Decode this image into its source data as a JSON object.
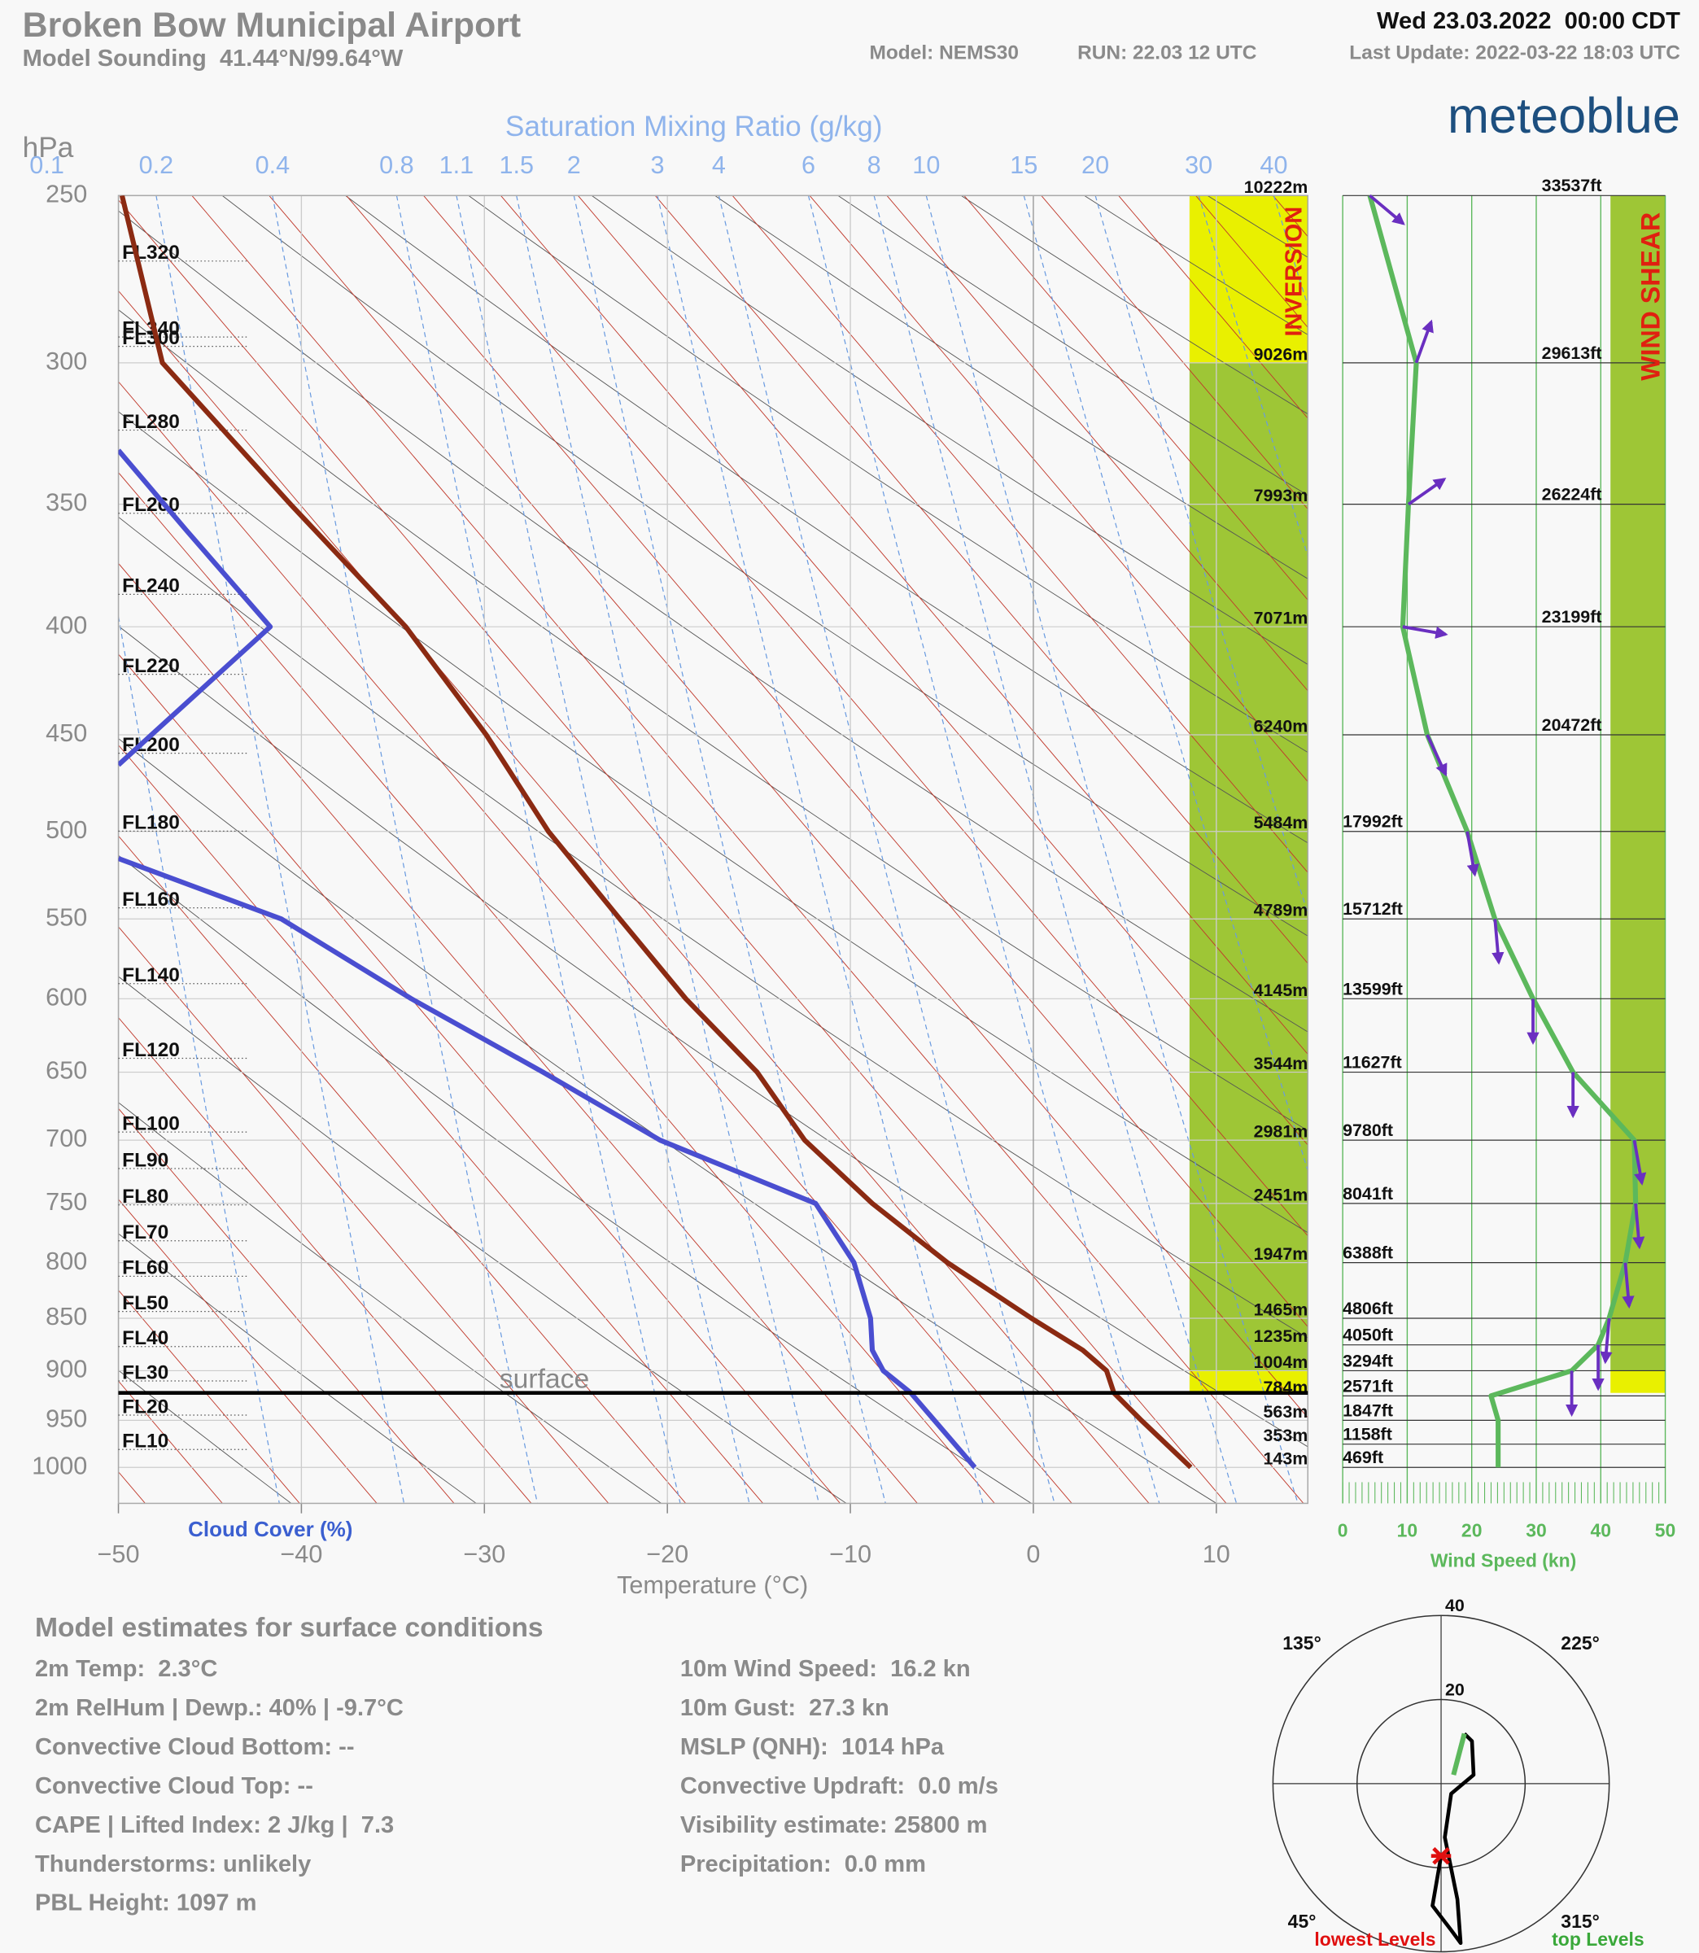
{
  "header": {
    "title": "Broken Bow Municipal Airport",
    "subtitle": "Model Sounding  41.44°N/99.64°W",
    "valid_time": "Wed 23.03.2022  00:00 CDT",
    "model": "Model: NEMS30",
    "run": "RUN: 22.03 12 UTC",
    "last_update": "Last Update: 2022-03-22 18:03 UTC",
    "brand": "meteoblue"
  },
  "chart_data": [
    {
      "type": "sounding",
      "y_label": "hPa",
      "x_label": "Temperature (°C)",
      "mixing_ratio_label": "Saturation Mixing Ratio (g/kg)",
      "cloud_cover_label": "Cloud Cover (%)",
      "log_y": true,
      "xlim": [
        -50,
        15
      ],
      "ylim": [
        250,
        1040
      ],
      "xticks": [
        {
          "value": -50,
          "label": "−50"
        },
        {
          "value": -40,
          "label": "−40"
        },
        {
          "value": -30,
          "label": "−30"
        },
        {
          "value": -20,
          "label": "−20"
        },
        {
          "value": -10,
          "label": "−10"
        },
        0,
        10
      ],
      "yticks": [
        250,
        300,
        350,
        400,
        450,
        500,
        550,
        600,
        650,
        700,
        750,
        800,
        850,
        900,
        950,
        1000
      ],
      "mixing_ratio_ticks": [
        0.1,
        0.2,
        0.4,
        0.8,
        1.1,
        1.5,
        2,
        3,
        4,
        6,
        8,
        10,
        15,
        20,
        30,
        40
      ],
      "series": [
        {
          "color": "#8b2a12",
          "pressure": [
            250,
            300,
            350,
            400,
            450,
            500,
            550,
            600,
            650,
            700,
            750,
            800,
            850,
            880,
            900,
            922,
            950,
            1000
          ],
          "values": [
            -49.8,
            -47.6,
            -40.6,
            -34.3,
            -29.9,
            -26.5,
            -22.6,
            -19.0,
            -15.1,
            -12.5,
            -8.8,
            -4.7,
            -0.1,
            2.7,
            4.0,
            4.4,
            5.9,
            8.6
          ]
        },
        {
          "color": "#4a4ed0",
          "pressure": [
            330,
            360,
            400,
            465,
            490,
            515,
            550,
            600,
            650,
            700,
            750,
            800,
            850,
            880,
            900,
            922,
            1000
          ],
          "values": [
            -50,
            -46.3,
            -41.7,
            -50,
            null,
            -50,
            -41.1,
            -34.0,
            -26.8,
            -20.4,
            -11.9,
            -9.8,
            -8.9,
            -8.8,
            -8.2,
            -6.7,
            -3.2
          ]
        }
      ],
      "surface": {
        "label": "surface",
        "pressure": 922
      },
      "flight_levels": [
        "FL340",
        "FL320",
        "FL300",
        "FL280",
        "FL260",
        "FL240",
        "FL220",
        "FL200",
        "FL180",
        "FL160",
        "FL140",
        "FL120",
        "FL100",
        "FL90",
        "FL80",
        "FL70",
        "FL60",
        "FL50",
        "FL40",
        "FL30",
        "FL20",
        "FL10"
      ],
      "level_pressure": [
        250,
        300,
        350,
        400,
        450,
        500,
        550,
        600,
        650,
        700,
        750,
        800,
        850,
        875,
        900,
        925,
        950,
        975,
        1000
      ],
      "height_labels_m": [
        "10222m",
        "9026m",
        "7993m",
        "7071m",
        "6240m",
        "5484m",
        "4789m",
        "4145m",
        "3544m",
        "2981m",
        "2451m",
        "1947m",
        "1465m",
        "1235m",
        "1004m",
        "784m",
        "563m",
        "353m",
        "143m"
      ],
      "inversion": {
        "label": "INVERSION",
        "bands": [
          {
            "from": 250,
            "to": 300,
            "color": "#e9f000"
          },
          {
            "from": 300,
            "to": 900,
            "color": "#9ec636"
          },
          {
            "from": 900,
            "to": 922,
            "color": "#e9f000"
          }
        ]
      }
    },
    {
      "type": "wind_profile",
      "x_label": "Wind Speed (kn)",
      "xlim": [
        0,
        50
      ],
      "xticks": [
        0,
        10,
        20,
        30,
        40,
        50
      ],
      "ylim": [
        250,
        1040
      ],
      "color": "#5cb85c",
      "arrow_color": "#6a2fc0",
      "pressure": [
        250,
        300,
        350,
        400,
        450,
        500,
        550,
        600,
        650,
        700,
        750,
        800,
        850,
        875,
        900,
        925,
        950,
        975,
        1000
      ],
      "values": [
        4.2,
        11.4,
        10.2,
        9.3,
        13.1,
        19.3,
        23.6,
        29.5,
        35.7,
        45.2,
        45.4,
        43.8,
        41.3,
        39.6,
        35.5,
        23.0,
        24.1,
        24.1,
        24.1
      ],
      "direction": [
        310,
        200,
        235,
        280,
        335,
        350,
        355,
        0,
        0,
        350,
        355,
        355,
        5,
        0,
        0,
        null,
        null,
        null,
        null
      ],
      "height_labels_ft": [
        "33537ft",
        "29613ft",
        "26224ft",
        "23199ft",
        "20472ft",
        "17992ft",
        "15712ft",
        "13599ft",
        "11627ft",
        "9780ft",
        "8041ft",
        "6388ft",
        "4806ft",
        "4050ft",
        "3294ft",
        "2571ft",
        "1847ft",
        "1158ft",
        "469ft"
      ],
      "wind_shear": {
        "label": "WIND SHEAR",
        "bands": [
          {
            "from": 250,
            "to": 900,
            "color": "#9ec636"
          },
          {
            "from": 900,
            "to": 922,
            "color": "#e9f000"
          }
        ]
      }
    },
    {
      "type": "hodograph",
      "rlim": [
        0,
        40
      ],
      "rticks": [
        20,
        40
      ],
      "direction_ticks": [
        {
          "value": 135,
          "label": "135°"
        },
        {
          "value": 225,
          "label": "225°"
        },
        {
          "value": 45,
          "label": "45°"
        },
        {
          "value": 315,
          "label": "315°"
        }
      ],
      "series": [
        {
          "name": "lowest Levels",
          "color": "#000000",
          "label_color": "#e01010",
          "values": [
            17.2,
            29.1,
            35.0,
            38.2,
            27.8,
            12.8,
            3.4,
            8.0,
            12.5,
            13.1
          ],
          "direction": [
            0,
            4,
            356,
            353,
            352,
            356,
            315,
            255,
            216,
            205
          ]
        },
        {
          "name": "top Levels",
          "color": "#5cb85c",
          "label_color": "#3aa83a",
          "values": [
            13.1,
            3.6
          ],
          "direction": [
            205,
            235
          ]
        }
      ],
      "surface_marker": {
        "color": "#e01010",
        "value": 17.2,
        "direction": 0
      }
    }
  ],
  "surface_conditions": {
    "title": "Model estimates for surface conditions",
    "left": [
      "2m Temp:  2.3°C",
      "2m RelHum | Dewp.: 40% | -9.7°C",
      "Convective Cloud Bottom: --",
      "Convective Cloud Top: --",
      "CAPE | Lifted Index: 2 J/kg |  7.3",
      "Thunderstorms: unlikely",
      "PBL Height: 1097 m"
    ],
    "right": [
      "10m Wind Speed:  16.2 kn",
      "10m Gust:  27.3 kn",
      "MSLP (QNH):  1014 hPa",
      "Convective Updraft:  0.0 m/s",
      "Visibility estimate: 25800 m",
      "Precipitation:  0.0 mm"
    ]
  }
}
